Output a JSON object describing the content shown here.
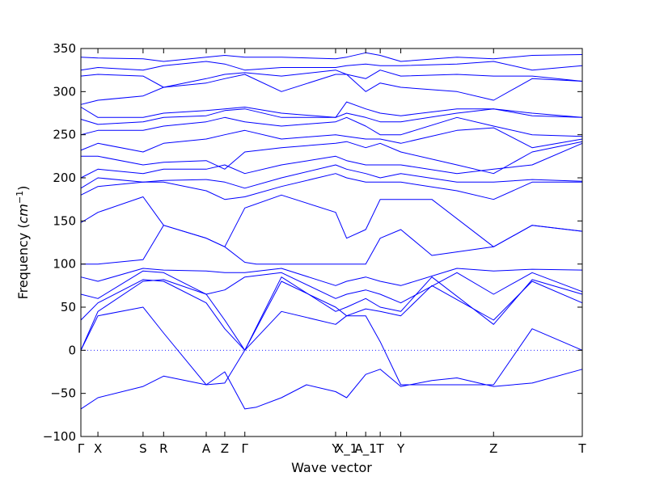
{
  "chart_data": {
    "type": "line",
    "xlabel": "Wave vector",
    "ylabel_main": "Frequency (",
    "ylabel_unit_base": "cm",
    "ylabel_unit_exp": "−1",
    "ylabel_close": ")",
    "ylim": [
      -100,
      350
    ],
    "xlim": [
      0,
      1
    ],
    "grid": false,
    "line_color": "#0000ff",
    "zero_line_color": "#0000ff",
    "yticks": [
      -100,
      -50,
      0,
      50,
      100,
      150,
      200,
      250,
      300,
      350
    ],
    "yticks_labels": [
      "−100",
      "−50",
      "0",
      "50",
      "100",
      "150",
      "200",
      "250",
      "300",
      "350"
    ],
    "high_symmetry_points": [
      {
        "label": "Γ",
        "x": 0.0
      },
      {
        "label": "X",
        "x": 0.034
      },
      {
        "label": "S",
        "x": 0.124
      },
      {
        "label": "R",
        "x": 0.165
      },
      {
        "label": "A",
        "x": 0.25
      },
      {
        "label": "Z",
        "x": 0.287
      },
      {
        "label": "Γ",
        "x": 0.327
      },
      {
        "label": "Y",
        "x": 0.508
      },
      {
        "label": "X_1",
        "x": 0.53
      },
      {
        "label": "A_1",
        "x": 0.568
      },
      {
        "label": "T",
        "x": 0.597
      },
      {
        "label": "Y",
        "x": 0.638
      },
      {
        "label": "Z",
        "x": 0.823
      },
      {
        "label": "T",
        "x": 1.0
      }
    ],
    "bands": [
      {
        "x": [
          0,
          0.034,
          0.124,
          0.165,
          0.25,
          0.287,
          0.327,
          0.35,
          0.4,
          0.45,
          0.508,
          0.53,
          0.568,
          0.597,
          0.638,
          0.7,
          0.75,
          0.823,
          0.9,
          1.0
        ],
        "y": [
          -68,
          -55,
          -42,
          -30,
          -40,
          -25,
          -68,
          -66,
          -55,
          -40,
          -48,
          -55,
          -28,
          -22,
          -42,
          -35,
          -32,
          -42,
          -38,
          -22
        ]
      },
      {
        "x": [
          0,
          0.034,
          0.124,
          0.165,
          0.25,
          0.287,
          0.327,
          0.4,
          0.508,
          0.53,
          0.568,
          0.597,
          0.638,
          0.75,
          0.823,
          0.9,
          1.0
        ],
        "y": [
          0,
          40,
          50,
          20,
          -40,
          -38,
          0,
          45,
          30,
          40,
          40,
          10,
          -40,
          -40,
          -40,
          25,
          0
        ]
      },
      {
        "x": [
          0,
          0.034,
          0.124,
          0.165,
          0.25,
          0.287,
          0.327,
          0.4,
          0.508,
          0.53,
          0.568,
          0.597,
          0.638,
          0.7,
          0.823,
          0.9,
          1.0
        ],
        "y": [
          0,
          45,
          80,
          82,
          65,
          35,
          0,
          80,
          50,
          40,
          48,
          45,
          40,
          75,
          35,
          80,
          55
        ]
      },
      {
        "x": [
          0,
          0.034,
          0.124,
          0.165,
          0.25,
          0.287,
          0.327,
          0.4,
          0.508,
          0.53,
          0.568,
          0.597,
          0.638,
          0.7,
          0.823,
          0.9,
          1.0
        ],
        "y": [
          35,
          55,
          82,
          80,
          55,
          25,
          0,
          85,
          45,
          50,
          60,
          50,
          45,
          85,
          30,
          82,
          65
        ]
      },
      {
        "x": [
          0,
          0.034,
          0.124,
          0.165,
          0.25,
          0.287,
          0.327,
          0.4,
          0.508,
          0.53,
          0.568,
          0.597,
          0.638,
          0.75,
          0.823,
          0.9,
          1.0
        ],
        "y": [
          65,
          60,
          92,
          90,
          65,
          70,
          85,
          90,
          60,
          65,
          70,
          65,
          55,
          90,
          65,
          90,
          68
        ]
      },
      {
        "x": [
          0,
          0.034,
          0.124,
          0.165,
          0.25,
          0.287,
          0.327,
          0.4,
          0.508,
          0.53,
          0.568,
          0.597,
          0.638,
          0.75,
          0.823,
          0.9,
          1.0
        ],
        "y": [
          85,
          80,
          95,
          93,
          92,
          90,
          90,
          95,
          75,
          80,
          85,
          80,
          75,
          95,
          92,
          94,
          93
        ]
      },
      {
        "x": [
          0,
          0.034,
          0.124,
          0.165,
          0.25,
          0.287,
          0.327,
          0.35,
          0.45,
          0.508,
          0.53,
          0.568,
          0.597,
          0.638,
          0.7,
          0.823,
          0.9,
          1.0
        ],
        "y": [
          100,
          100,
          105,
          145,
          130,
          120,
          102,
          100,
          100,
          100,
          100,
          100,
          130,
          140,
          110,
          120,
          145,
          138
        ]
      },
      {
        "x": [
          0,
          0.034,
          0.124,
          0.165,
          0.25,
          0.287,
          0.327,
          0.4,
          0.508,
          0.53,
          0.568,
          0.597,
          0.638,
          0.7,
          0.823,
          0.9,
          1.0
        ],
        "y": [
          148,
          160,
          178,
          145,
          130,
          120,
          165,
          180,
          160,
          130,
          140,
          175,
          175,
          175,
          120,
          145,
          138
        ]
      },
      {
        "x": [
          0,
          0.034,
          0.124,
          0.165,
          0.25,
          0.287,
          0.327,
          0.4,
          0.508,
          0.53,
          0.568,
          0.597,
          0.638,
          0.75,
          0.823,
          0.9,
          1.0
        ],
        "y": [
          180,
          190,
          195,
          195,
          185,
          175,
          178,
          190,
          205,
          200,
          195,
          195,
          195,
          185,
          175,
          195,
          195
        ]
      },
      {
        "x": [
          0,
          0.034,
          0.124,
          0.165,
          0.25,
          0.287,
          0.327,
          0.4,
          0.508,
          0.53,
          0.568,
          0.597,
          0.638,
          0.75,
          0.823,
          0.9,
          1.0
        ],
        "y": [
          188,
          200,
          195,
          197,
          198,
          195,
          188,
          200,
          215,
          210,
          205,
          200,
          205,
          195,
          195,
          198,
          196
        ]
      },
      {
        "x": [
          0,
          0.034,
          0.124,
          0.165,
          0.25,
          0.287,
          0.327,
          0.4,
          0.508,
          0.53,
          0.568,
          0.597,
          0.638,
          0.75,
          0.823,
          0.9,
          1.0
        ],
        "y": [
          200,
          210,
          205,
          210,
          210,
          215,
          205,
          215,
          225,
          220,
          215,
          215,
          215,
          205,
          210,
          215,
          240
        ]
      },
      {
        "x": [
          0,
          0.034,
          0.124,
          0.165,
          0.25,
          0.287,
          0.327,
          0.4,
          0.508,
          0.53,
          0.568,
          0.597,
          0.638,
          0.75,
          0.823,
          0.9,
          1.0
        ],
        "y": [
          225,
          225,
          215,
          218,
          220,
          210,
          230,
          235,
          240,
          242,
          235,
          240,
          230,
          215,
          205,
          230,
          242
        ]
      },
      {
        "x": [
          0,
          0.034,
          0.124,
          0.165,
          0.25,
          0.287,
          0.327,
          0.4,
          0.508,
          0.53,
          0.568,
          0.597,
          0.638,
          0.75,
          0.823,
          0.9,
          1.0
        ],
        "y": [
          232,
          240,
          230,
          240,
          245,
          250,
          255,
          245,
          250,
          248,
          245,
          245,
          240,
          255,
          258,
          235,
          245
        ]
      },
      {
        "x": [
          0,
          0.034,
          0.124,
          0.165,
          0.25,
          0.287,
          0.327,
          0.4,
          0.508,
          0.53,
          0.568,
          0.597,
          0.638,
          0.75,
          0.823,
          0.9,
          1.0
        ],
        "y": [
          250,
          255,
          255,
          260,
          265,
          270,
          265,
          260,
          265,
          270,
          260,
          250,
          250,
          270,
          260,
          250,
          248
        ]
      },
      {
        "x": [
          0,
          0.034,
          0.124,
          0.165,
          0.25,
          0.287,
          0.327,
          0.4,
          0.508,
          0.53,
          0.568,
          0.597,
          0.638,
          0.75,
          0.823,
          0.9,
          1.0
        ],
        "y": [
          268,
          262,
          265,
          270,
          272,
          278,
          280,
          270,
          270,
          275,
          270,
          265,
          265,
          275,
          280,
          272,
          270
        ]
      },
      {
        "x": [
          0,
          0.034,
          0.124,
          0.165,
          0.25,
          0.287,
          0.327,
          0.4,
          0.508,
          0.53,
          0.568,
          0.597,
          0.638,
          0.75,
          0.823,
          0.9,
          1.0
        ],
        "y": [
          282,
          270,
          270,
          275,
          278,
          280,
          282,
          275,
          270,
          288,
          280,
          275,
          272,
          280,
          280,
          275,
          270
        ]
      },
      {
        "x": [
          0,
          0.034,
          0.124,
          0.165,
          0.25,
          0.287,
          0.327,
          0.4,
          0.508,
          0.53,
          0.568,
          0.597,
          0.638,
          0.75,
          0.823,
          0.9,
          1.0
        ],
        "y": [
          285,
          290,
          295,
          305,
          310,
          315,
          320,
          300,
          320,
          320,
          300,
          310,
          305,
          300,
          290,
          315,
          312
        ]
      },
      {
        "x": [
          0,
          0.034,
          0.124,
          0.165,
          0.25,
          0.287,
          0.327,
          0.4,
          0.508,
          0.53,
          0.568,
          0.597,
          0.638,
          0.75,
          0.823,
          0.9,
          1.0
        ],
        "y": [
          318,
          320,
          318,
          305,
          315,
          320,
          322,
          318,
          325,
          320,
          315,
          325,
          318,
          320,
          318,
          318,
          312
        ]
      },
      {
        "x": [
          0,
          0.034,
          0.124,
          0.165,
          0.25,
          0.287,
          0.327,
          0.4,
          0.508,
          0.53,
          0.568,
          0.597,
          0.638,
          0.75,
          0.823,
          0.9,
          1.0
        ],
        "y": [
          325,
          328,
          325,
          330,
          335,
          332,
          325,
          328,
          328,
          330,
          332,
          330,
          330,
          332,
          335,
          325,
          330
        ]
      },
      {
        "x": [
          0,
          0.034,
          0.124,
          0.165,
          0.25,
          0.287,
          0.327,
          0.4,
          0.508,
          0.53,
          0.568,
          0.597,
          0.638,
          0.75,
          0.823,
          0.9,
          1.0
        ],
        "y": [
          340,
          339,
          338,
          335,
          340,
          342,
          340,
          340,
          338,
          340,
          345,
          342,
          335,
          340,
          338,
          342,
          343
        ]
      }
    ]
  }
}
